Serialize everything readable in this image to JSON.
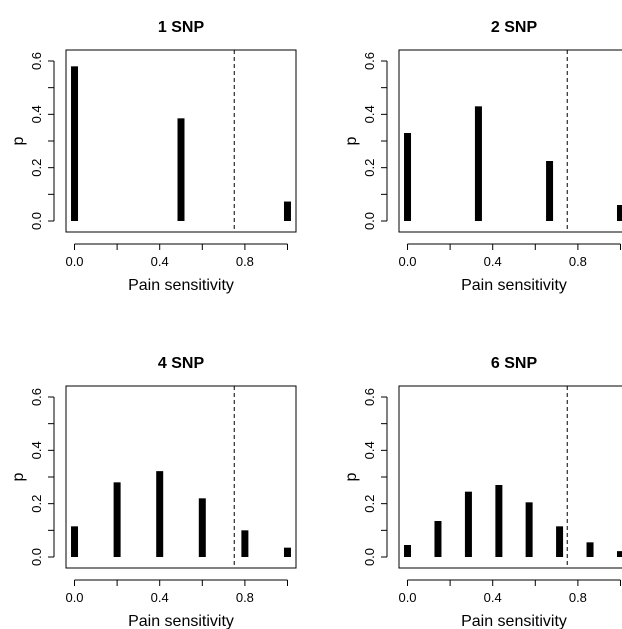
{
  "chart_data": [
    {
      "type": "bar",
      "title": "1 SNP",
      "xlabel": "Pain sensitivity",
      "ylabel": "p",
      "x": [
        0.0,
        0.5,
        1.0
      ],
      "values": [
        0.58,
        0.385,
        0.073
      ],
      "xlim": [
        -0.04,
        1.04
      ],
      "ylim": [
        0,
        0.6
      ],
      "xticks": [
        "0.0",
        "0.4",
        "0.8"
      ],
      "yticks": [
        "0.0",
        "0.2",
        "0.4",
        "0.6"
      ],
      "threshold": 0.75,
      "grid": false
    },
    {
      "type": "bar",
      "title": "2 SNP",
      "xlabel": "Pain sensitivity",
      "ylabel": "p",
      "x": [
        0.0,
        0.333,
        0.667,
        1.0
      ],
      "values": [
        0.33,
        0.43,
        0.225,
        0.06
      ],
      "xlim": [
        -0.04,
        1.04
      ],
      "ylim": [
        0,
        0.6
      ],
      "xticks": [
        "0.0",
        "0.4",
        "0.8"
      ],
      "yticks": [
        "0.0",
        "0.2",
        "0.4",
        "0.6"
      ],
      "threshold": 0.75,
      "grid": false
    },
    {
      "type": "bar",
      "title": "4 SNP",
      "xlabel": "Pain sensitivity",
      "ylabel": "p",
      "x": [
        0.0,
        0.2,
        0.4,
        0.6,
        0.8,
        1.0
      ],
      "values": [
        0.115,
        0.28,
        0.322,
        0.22,
        0.1,
        0.035
      ],
      "xlim": [
        -0.04,
        1.04
      ],
      "ylim": [
        0,
        0.6
      ],
      "xticks": [
        "0.0",
        "0.4",
        "0.8"
      ],
      "yticks": [
        "0.0",
        "0.2",
        "0.4",
        "0.6"
      ],
      "threshold": 0.75,
      "grid": false
    },
    {
      "type": "bar",
      "title": "6 SNP",
      "xlabel": "Pain sensitivity",
      "ylabel": "p",
      "x": [
        0.0,
        0.143,
        0.286,
        0.429,
        0.571,
        0.714,
        0.857,
        1.0
      ],
      "values": [
        0.045,
        0.135,
        0.245,
        0.27,
        0.205,
        0.115,
        0.055,
        0.022
      ],
      "xlim": [
        -0.04,
        1.04
      ],
      "ylim": [
        0,
        0.6
      ],
      "xticks": [
        "0.0",
        "0.4",
        "0.8"
      ],
      "yticks": [
        "0.0",
        "0.2",
        "0.4",
        "0.6"
      ],
      "threshold": 0.75,
      "grid": false
    }
  ],
  "colors": {
    "bars": "#000000",
    "axes": "#000000",
    "threshold_line": "#000000",
    "background": "#ffffff"
  }
}
